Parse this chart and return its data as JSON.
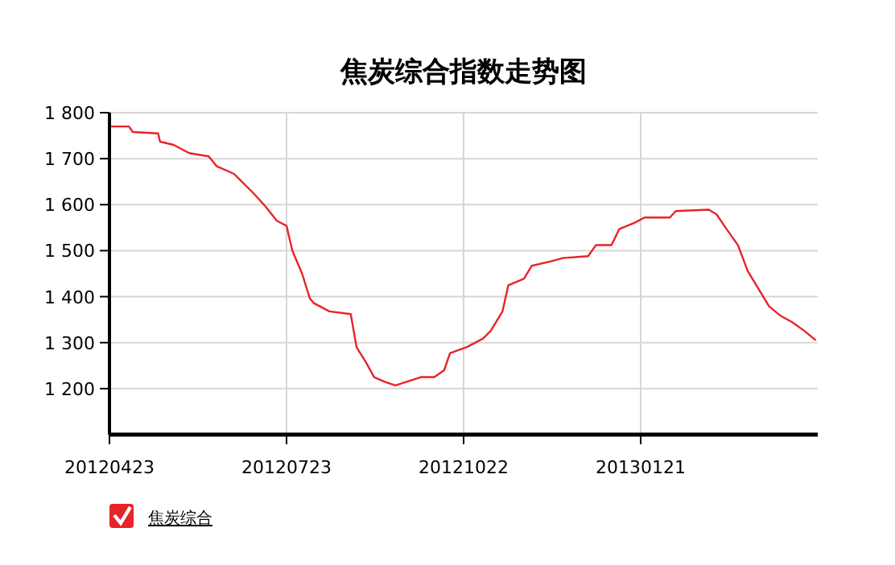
{
  "chart_data": {
    "type": "line",
    "title": "焦炭综合指数走势图",
    "xlim": [
      "2012-04-23",
      "2013-04-22"
    ],
    "xticks": [
      {
        "value": "2012-04-23",
        "label": "20120423"
      },
      {
        "value": "2012-07-23",
        "label": "20120723"
      },
      {
        "value": "2012-10-22",
        "label": "20121022"
      },
      {
        "value": "2013-01-21",
        "label": "20130121"
      }
    ],
    "ylim": [
      1100,
      1800
    ],
    "yticks": [
      {
        "value": 1200,
        "label": "1 200"
      },
      {
        "value": 1300,
        "label": "1 300"
      },
      {
        "value": 1400,
        "label": "1 400"
      },
      {
        "value": 1500,
        "label": "1 500"
      },
      {
        "value": 1600,
        "label": "1 600"
      },
      {
        "value": 1700,
        "label": "1 700"
      },
      {
        "value": 1800,
        "label": "1 800"
      }
    ],
    "grid": true,
    "legend": "bottom left",
    "marker": "none",
    "line_style": "solid",
    "series": [
      {
        "name": "焦炭综合",
        "color": "#e8232a",
        "x": [
          "2012-04-23",
          "2012-05-03",
          "2012-05-05",
          "2012-05-18",
          "2012-05-19",
          "2012-05-26",
          "2012-06-03",
          "2012-06-13",
          "2012-06-17",
          "2012-06-26",
          "2012-06-30",
          "2012-07-06",
          "2012-07-12",
          "2012-07-18",
          "2012-07-23",
          "2012-07-26",
          "2012-07-31",
          "2012-08-04",
          "2012-08-06",
          "2012-08-14",
          "2012-08-25",
          "2012-08-28",
          "2012-09-02",
          "2012-09-06",
          "2012-09-12",
          "2012-09-17",
          "2012-09-25",
          "2012-09-30",
          "2012-10-07",
          "2012-10-12",
          "2012-10-15",
          "2012-10-24",
          "2012-11-01",
          "2012-11-05",
          "2012-11-11",
          "2012-11-14",
          "2012-11-22",
          "2012-11-26",
          "2012-12-06",
          "2012-12-12",
          "2012-12-25",
          "2012-12-29",
          "2013-01-06",
          "2013-01-10",
          "2013-01-18",
          "2013-01-23",
          "2013-02-05",
          "2013-02-08",
          "2013-02-25",
          "2013-03-01",
          "2013-03-05",
          "2013-03-12",
          "2013-03-17",
          "2013-03-23",
          "2013-03-28",
          "2013-04-03",
          "2013-04-09",
          "2013-04-15",
          "2013-04-21"
        ],
        "values": [
          1770,
          1770,
          1758,
          1755,
          1737,
          1730,
          1712,
          1705,
          1684,
          1667,
          1650,
          1625,
          1597,
          1565,
          1554,
          1500,
          1450,
          1396,
          1386,
          1368,
          1362,
          1290,
          1256,
          1225,
          1214,
          1207,
          1218,
          1225,
          1225,
          1240,
          1277,
          1291,
          1309,
          1326,
          1368,
          1425,
          1439,
          1467,
          1477,
          1484,
          1488,
          1512,
          1512,
          1547,
          1561,
          1572,
          1572,
          1586,
          1589,
          1579,
          1554,
          1512,
          1456,
          1414,
          1379,
          1358,
          1344,
          1326,
          1305
        ]
      }
    ]
  }
}
